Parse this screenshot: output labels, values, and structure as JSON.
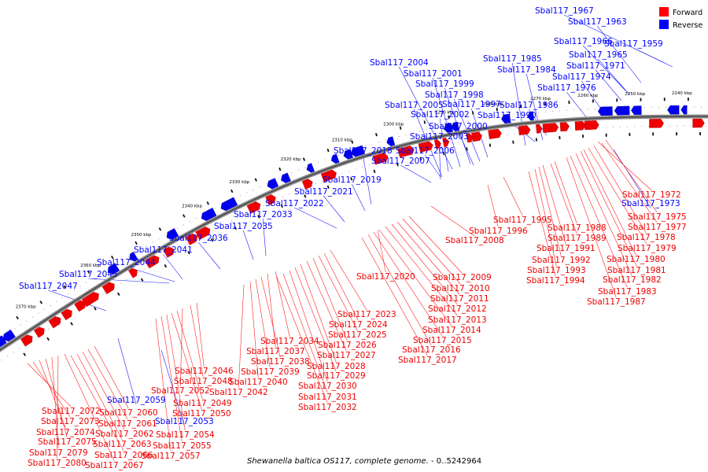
{
  "legend": {
    "forward": {
      "label": "Forward",
      "color": "#ff0000"
    },
    "reverse": {
      "label": "Reverse",
      "color": "#0000ff"
    }
  },
  "caption": {
    "organism": "Shewanella baltica OS117, complete genome.",
    "range": " - 0..5242964"
  },
  "ticks": [
    "2240 kbp",
    "2250 kbp",
    "2260 kbp",
    "2270 kbp",
    "2280 kbp",
    "2290 kbp",
    "2300 kbp",
    "2310 kbp",
    "2320 kbp",
    "2330 kbp",
    "2340 kbp",
    "2350 kbp",
    "2360 kbp",
    "2370 kbp"
  ],
  "genes": {
    "reverse": [
      "Sbal117_1967",
      "Sbal117_1963",
      "Sbal117_1966",
      "Sbal117_1959",
      "Sbal117_1965",
      "Sbal117_1985",
      "Sbal117_1971",
      "Sbal117_1984",
      "Sbal117_1974",
      "Sbal117_2004",
      "Sbal117_2001",
      "Sbal117_1976",
      "Sbal117_1999",
      "Sbal117_1998",
      "Sbal117_2005",
      "Sbal117_1997",
      "Sbal117_1986",
      "Sbal117_2002",
      "Sbal117_1990",
      "Sbal117_2000",
      "Sbal117_2003",
      "Sbal117_2018",
      "Sbal117_2006",
      "Sbal117_2007",
      "Sbal117_2019",
      "Sbal117_2021",
      "Sbal117_2022",
      "Sbal117_2033",
      "Sbal117_2035",
      "Sbal117_2036",
      "Sbal117_2041",
      "Sbal117_2044",
      "Sbal117_2045",
      "Sbal117_2047",
      "Sbal117_1973",
      "Sbal117_2059",
      "Sbal117_2053"
    ],
    "forward": [
      "Sbal117_1972",
      "Sbal117_1975",
      "Sbal117_1995",
      "Sbal117_1977",
      "Sbal117_1988",
      "Sbal117_1996",
      "Sbal117_1978",
      "Sbal117_1989",
      "Sbal117_2008",
      "Sbal117_1979",
      "Sbal117_1991",
      "Sbal117_1980",
      "Sbal117_1992",
      "Sbal117_1981",
      "Sbal117_1993",
      "Sbal117_1982",
      "Sbal117_2020",
      "Sbal117_2009",
      "Sbal117_1994",
      "Sbal117_1983",
      "Sbal117_2010",
      "Sbal117_1987",
      "Sbal117_2011",
      "Sbal117_2012",
      "Sbal117_2023",
      "Sbal117_2013",
      "Sbal117_2024",
      "Sbal117_2014",
      "Sbal117_2025",
      "Sbal117_2034",
      "Sbal117_2015",
      "Sbal117_2026",
      "Sbal117_2037",
      "Sbal117_2016",
      "Sbal117_2027",
      "Sbal117_2038",
      "Sbal117_2017",
      "Sbal117_2028",
      "Sbal117_2046",
      "Sbal117_2039",
      "Sbal117_2029",
      "Sbal117_2048",
      "Sbal117_2040",
      "Sbal117_2030",
      "Sbal117_2052",
      "Sbal117_2042",
      "Sbal117_2031",
      "Sbal117_2049",
      "Sbal117_2032",
      "Sbal117_2072",
      "Sbal117_2050",
      "Sbal117_2060",
      "Sbal117_2073",
      "Sbal117_2061",
      "Sbal117_2074",
      "Sbal117_2062",
      "Sbal117_2054",
      "Sbal117_2075",
      "Sbal117_2063",
      "Sbal117_2055",
      "Sbal117_2079",
      "Sbal117_2066",
      "Sbal117_2057",
      "Sbal117_2080",
      "Sbal117_2067"
    ]
  }
}
